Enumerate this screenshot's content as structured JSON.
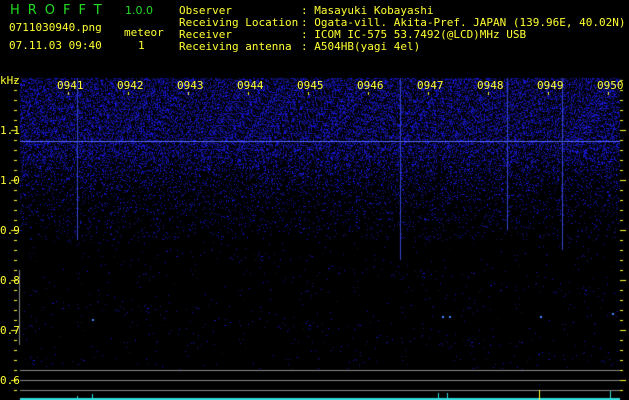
{
  "app": {
    "logo": "HROFFT",
    "version": "1.0.0"
  },
  "file": {
    "name": "0711030940.png",
    "datetime": "07.11.03 09:40"
  },
  "meteor": {
    "label": "meteor",
    "count": "1"
  },
  "info": [
    {
      "label": "Observer",
      "value": ": Masayuki Kobayashi"
    },
    {
      "label": "Receiving Location",
      "value": ": Ogata-vill. Akita-Pref. JAPAN (139.96E, 40.02N)"
    },
    {
      "label": "Receiver",
      "value": ": ICOM IC-575 53.7492(@LCD)MHz USB"
    },
    {
      "label": "Receiving antenna",
      "value": ": A504HB(yagi 4el)"
    }
  ],
  "spectrogram": {
    "y_unit": "kHz",
    "y_ticks": [
      "1.1",
      "1.0",
      "0.9",
      "0.8",
      "0.7",
      "0.6"
    ],
    "time_labels": [
      "0941",
      "0942",
      "0943",
      "0944",
      "0945",
      "0946",
      "0947",
      "0948",
      "0949",
      "0950"
    ],
    "colors": {
      "noise": "#2233ff",
      "axis": "#ffff33",
      "meteor_marker": "#33dddd",
      "guide": "#888888"
    }
  }
}
